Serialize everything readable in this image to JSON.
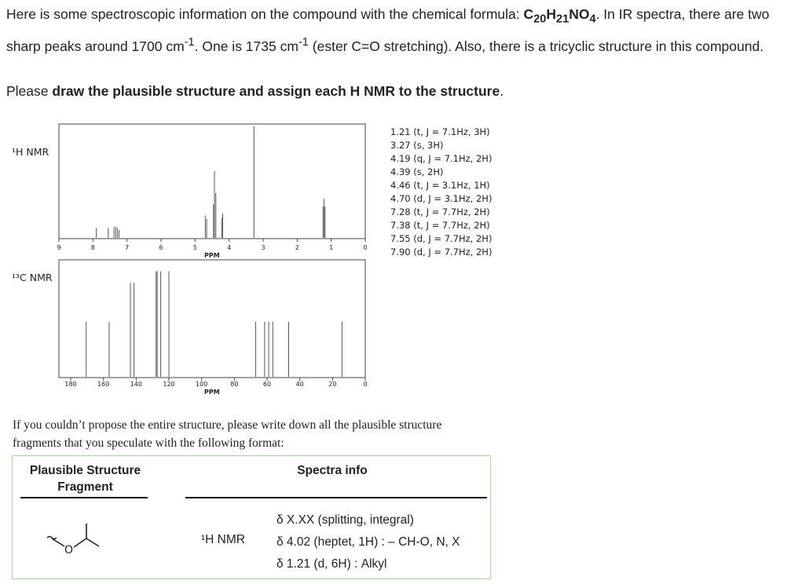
{
  "intro": {
    "p1": "Here is some spectroscopic information on the compound with the chemical formula: ",
    "formula_c": "C",
    "formula_c_sub": "20",
    "formula_h": "H",
    "formula_h_sub": "21",
    "formula_rest": "NO",
    "formula_o_sub": "4",
    "p2": ". In IR spectra, there are two sharp peaks around 1700 cm",
    "sup1": "-1",
    "p3": ". One is 1735 cm",
    "sup2": "-1",
    "p4": " (ester C=O stretching). Also, there is a tricyclic structure in this compound."
  },
  "ask": {
    "pre": "Please ",
    "bold": "draw the plausible structure and assign each H NMR to the structure",
    "post": "."
  },
  "hnmr": {
    "label": "¹H NMR",
    "xlabel": "PPM",
    "ticks": [
      "9",
      "8",
      "7",
      "6",
      "5",
      "4",
      "3",
      "2",
      "1",
      "0"
    ],
    "shifts": [
      "1.21 (t, J = 7.1Hz, 3H)",
      "3.27 (s, 3H)",
      "4.19 (q, J = 7.1Hz, 2H)",
      "4.39 (s, 2H)",
      "4.46 (t, J = 3.1Hz, 1H)",
      "4.70 (d, J = 3.1Hz, 2H)",
      "7.28 (t, J = 7.7Hz, 2H)",
      "7.38 (t, J = 7.7Hz, 2H)",
      "7.55 (d, J = 7.7Hz, 2H)",
      "7.90 (d, J = 7.7Hz, 2H)"
    ],
    "peaks": [
      {
        "ppm": 7.9,
        "h": 0.09
      },
      {
        "ppm": 7.55,
        "h": 0.09
      },
      {
        "ppm": 7.38,
        "h": 0.1
      },
      {
        "ppm": 7.33,
        "h": 0.1
      },
      {
        "ppm": 7.28,
        "h": 0.09
      },
      {
        "ppm": 7.23,
        "h": 0.07
      },
      {
        "ppm": 4.7,
        "h": 0.2
      },
      {
        "ppm": 4.66,
        "h": 0.17
      },
      {
        "ppm": 4.46,
        "h": 0.3
      },
      {
        "ppm": 4.43,
        "h": 0.6
      },
      {
        "ppm": 4.39,
        "h": 0.4
      },
      {
        "ppm": 4.21,
        "h": 0.18
      },
      {
        "ppm": 4.19,
        "h": 0.22
      },
      {
        "ppm": 3.27,
        "h": 1.0
      },
      {
        "ppm": 1.24,
        "h": 0.28
      },
      {
        "ppm": 1.21,
        "h": 0.35
      },
      {
        "ppm": 1.18,
        "h": 0.28
      }
    ]
  },
  "cnmr": {
    "label": "¹³C NMR",
    "xlabel": "PPM",
    "ticks": [
      "180",
      "160",
      "140",
      "120",
      "100",
      "80",
      "60",
      "40",
      "20",
      "0"
    ],
    "peaks": [
      {
        "ppm": 170.5,
        "h": 0.48
      },
      {
        "ppm": 156.5,
        "h": 0.48
      },
      {
        "ppm": 143.5,
        "h": 0.82
      },
      {
        "ppm": 141.3,
        "h": 0.82
      },
      {
        "ppm": 127.8,
        "h": 0.92
      },
      {
        "ppm": 127.1,
        "h": 0.92
      },
      {
        "ppm": 125.0,
        "h": 0.92
      },
      {
        "ppm": 120.0,
        "h": 0.92
      },
      {
        "ppm": 67.0,
        "h": 0.48
      },
      {
        "ppm": 61.5,
        "h": 0.48
      },
      {
        "ppm": 59.0,
        "h": 0.48
      },
      {
        "ppm": 56.5,
        "h": 0.48
      },
      {
        "ppm": 46.8,
        "h": 0.48
      },
      {
        "ppm": 14.2,
        "h": 0.48
      }
    ]
  },
  "note": "If you couldn’t propose the entire structure, please write down all the plausible structure fragments that you speculate with the following format:",
  "format_box": {
    "col1": "Plausible Structure Fragment",
    "col2": "Spectra info",
    "row_label": "¹H NMR",
    "info_lines": [
      "δ X.XX (splitting, integral)",
      "δ 4.02 (heptet, 1H) : – CH-O, N, X",
      "δ 1.21 (d, 6H) : Alkyl"
    ],
    "fragment_atom": "O"
  }
}
